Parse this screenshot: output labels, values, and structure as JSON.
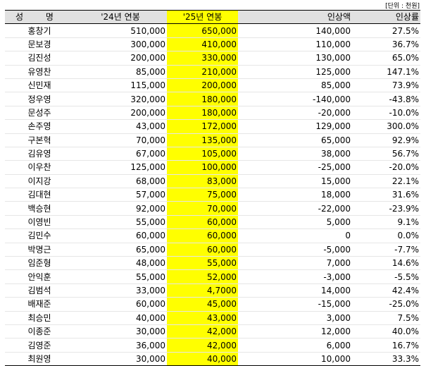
{
  "unit_note": "[단위 : 천원]",
  "headers": {
    "name": "성 명",
    "salary_2024": "'24년 연봉",
    "salary_2025": "'25년 연봉",
    "increase_amount": "인상액",
    "increase_rate": "인상률"
  },
  "rows": [
    {
      "name": "홍창기",
      "s2024": "510,000",
      "s2025": "650,000",
      "diff": "140,000",
      "rate": "27.5%"
    },
    {
      "name": "문보경",
      "s2024": "300,000",
      "s2025": "410,000",
      "diff": "110,000",
      "rate": "36.7%"
    },
    {
      "name": "김진성",
      "s2024": "200,000",
      "s2025": "330,000",
      "diff": "130,000",
      "rate": "65.0%"
    },
    {
      "name": "유영찬",
      "s2024": "85,000",
      "s2025": "210,000",
      "diff": "125,000",
      "rate": "147.1%"
    },
    {
      "name": "신민재",
      "s2024": "115,000",
      "s2025": "200,000",
      "diff": "85,000",
      "rate": "73.9%"
    },
    {
      "name": "정우영",
      "s2024": "320,000",
      "s2025": "180,000",
      "diff": "-140,000",
      "rate": "-43.8%"
    },
    {
      "name": "문성주",
      "s2024": "200,000",
      "s2025": "180,000",
      "diff": "-20,000",
      "rate": "-10.0%"
    },
    {
      "name": "손주영",
      "s2024": "43,000",
      "s2025": "172,000",
      "diff": "129,000",
      "rate": "300.0%"
    },
    {
      "name": "구본혁",
      "s2024": "70,000",
      "s2025": "135,000",
      "diff": "65,000",
      "rate": "92.9%"
    },
    {
      "name": "김유영",
      "s2024": "67,000",
      "s2025": "105,000",
      "diff": "38,000",
      "rate": "56.7%"
    },
    {
      "name": "이우찬",
      "s2024": "125,000",
      "s2025": "100,000",
      "diff": "-25,000",
      "rate": "-20.0%"
    },
    {
      "name": "이지강",
      "s2024": "68,000",
      "s2025": "83,000",
      "diff": "15,000",
      "rate": "22.1%"
    },
    {
      "name": "김대현",
      "s2024": "57,000",
      "s2025": "75,000",
      "diff": "18,000",
      "rate": "31.6%"
    },
    {
      "name": "백승현",
      "s2024": "92,000",
      "s2025": "70,000",
      "diff": "-22,000",
      "rate": "-23.9%"
    },
    {
      "name": "이영빈",
      "s2024": "55,000",
      "s2025": "60,000",
      "diff": "5,000",
      "rate": "9.1%"
    },
    {
      "name": "김민수",
      "s2024": "60,000",
      "s2025": "60,000",
      "diff": "0",
      "rate": "0.0%"
    },
    {
      "name": "박명근",
      "s2024": "65,000",
      "s2025": "60,000",
      "diff": "-5,000",
      "rate": "-7.7%"
    },
    {
      "name": "임준형",
      "s2024": "48,000",
      "s2025": "55,000",
      "diff": "7,000",
      "rate": "14.6%"
    },
    {
      "name": "안익훈",
      "s2024": "55,000",
      "s2025": "52,000",
      "diff": "-3,000",
      "rate": "-5.5%"
    },
    {
      "name": "김범석",
      "s2024": "33,000",
      "s2025": "4,7000",
      "diff": "14,000",
      "rate": "42.4%"
    },
    {
      "name": "배재준",
      "s2024": "60,000",
      "s2025": "45,000",
      "diff": "-15,000",
      "rate": "-25.0%"
    },
    {
      "name": "최승민",
      "s2024": "40,000",
      "s2025": "43,000",
      "diff": "3,000",
      "rate": "7.5%"
    },
    {
      "name": "이종준",
      "s2024": "30,000",
      "s2025": "42,000",
      "diff": "12,000",
      "rate": "40.0%"
    },
    {
      "name": "김영준",
      "s2024": "36,000",
      "s2025": "42,000",
      "diff": "6,000",
      "rate": "16.7%"
    },
    {
      "name": "최원영",
      "s2024": "30,000",
      "s2025": "40,000",
      "diff": "10,000",
      "rate": "33.3%"
    }
  ],
  "colors": {
    "header_bg": "#e1e1e1",
    "highlight_2025": "#ffff00",
    "row_divider": "#e6e6e6"
  }
}
